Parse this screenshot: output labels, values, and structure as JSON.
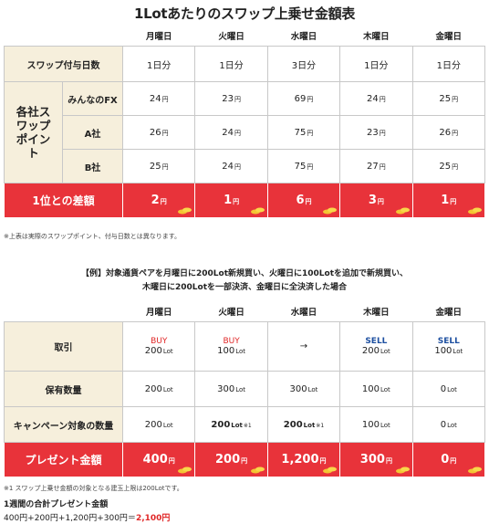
{
  "title": "1Lotあたりのスワップ上乗せ金額表",
  "days": [
    "月曜日",
    "火曜日",
    "水曜日",
    "木曜日",
    "金曜日"
  ],
  "table1": {
    "days_row_label": "スワップ付与日数",
    "days_values": [
      "1日分",
      "1日分",
      "3日分",
      "1日分",
      "1日分"
    ],
    "group_label": "各社スワップポイント",
    "rows": [
      {
        "label": "みんなのFX",
        "values": [
          "24",
          "23",
          "69",
          "24",
          "25"
        ]
      },
      {
        "label": "A社",
        "values": [
          "26",
          "24",
          "75",
          "23",
          "26"
        ]
      },
      {
        "label": "B社",
        "values": [
          "25",
          "24",
          "75",
          "27",
          "25"
        ]
      }
    ],
    "yen": "円",
    "diff_label": "1位との差額",
    "diff_values": [
      "2",
      "1",
      "6",
      "3",
      "1"
    ]
  },
  "note1": "※上表は実際のスワップポイント、付与日数とは異なります。",
  "example_line1": "【例】対象通貨ペアを月曜日に200Lot新規買い、火曜日に100Lotを追加で新規買い、",
  "example_line2": "木曜日に200Lotを一部決済、金曜日に全決済した場合",
  "table2": {
    "trade_label": "取引",
    "trades": [
      {
        "action": "BUY",
        "amount": "200",
        "type": "buy"
      },
      {
        "action": "BUY",
        "amount": "100",
        "type": "buy"
      },
      {
        "action": "→",
        "amount": "",
        "type": "arrow"
      },
      {
        "action": "SELL",
        "amount": "200",
        "type": "sell"
      },
      {
        "action": "SELL",
        "amount": "100",
        "type": "sell"
      }
    ],
    "holding_label": "保有数量",
    "holdings": [
      "200",
      "300",
      "300",
      "100",
      "0"
    ],
    "campaign_label": "キャンペーン対象の数量",
    "campaign": [
      {
        "value": "200",
        "mark": ""
      },
      {
        "value": "200",
        "mark": "※1"
      },
      {
        "value": "200",
        "mark": "※1"
      },
      {
        "value": "100",
        "mark": ""
      },
      {
        "value": "0",
        "mark": ""
      }
    ],
    "lot_unit": "Lot",
    "present_label": "プレゼント金額",
    "present_values": [
      "400",
      "200",
      "1,200",
      "300",
      "0"
    ],
    "yen": "円"
  },
  "note2": "※1 スワップ上乗せ金額の対象となる建玉上限は200Lotです。",
  "total_title": "1週間の合計プレゼント金額",
  "total_formula": "400円+200円+1,200円+300円＝",
  "total_result": "2,100円",
  "colors": {
    "accent_red": "#e8333a",
    "header_beige": "#f6efdc",
    "buy_red": "#e02828",
    "sell_blue": "#1d4fa0"
  }
}
